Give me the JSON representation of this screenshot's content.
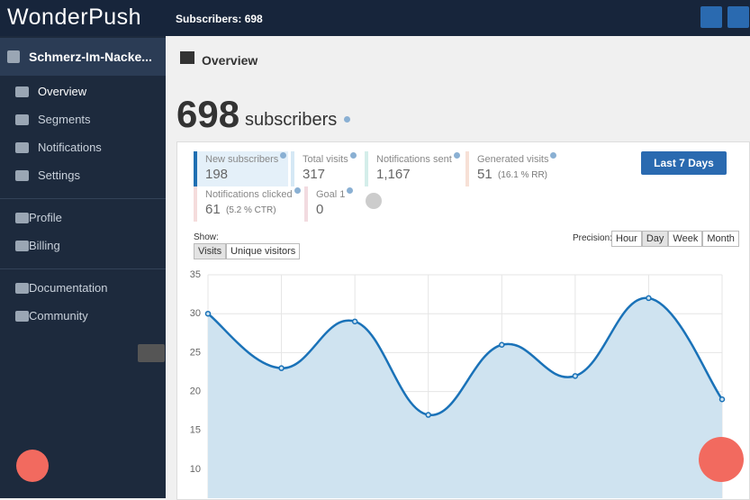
{
  "header": {
    "logo": "WonderPush",
    "subscribers": "Subscribers: 698"
  },
  "sidebar": {
    "project": "Schmerz-Im-Nacke...",
    "nav": [
      "Overview",
      "Segments",
      "Notifications",
      "Settings"
    ],
    "account": [
      "Profile",
      "Billing"
    ],
    "help": [
      "Documentation",
      "Community"
    ]
  },
  "main": {
    "breadcrumb": "Overview",
    "subscriber_count": "698",
    "subscriber_label": "subscribers",
    "stats": [
      {
        "label": "New subscribers",
        "value": "198"
      },
      {
        "label": "Total visits",
        "value": "317"
      },
      {
        "label": "Notifications sent",
        "value": "1,167"
      },
      {
        "label": "Generated visits",
        "value": "51",
        "detail": "(16.1 % RR)"
      },
      {
        "label": "Notifications clicked",
        "value": "61",
        "detail": "(5.2 % CTR)"
      },
      {
        "label": "Goal 1",
        "value": "0"
      }
    ],
    "date_range": "Last 7 Days",
    "show_label": "Show:",
    "show_options": [
      "Visits",
      "Unique visitors"
    ],
    "precision_label": "Precision:",
    "precision_options": [
      "Hour",
      "Day",
      "Week",
      "Month"
    ]
  },
  "chart_data": {
    "type": "line",
    "values": [
      30,
      23,
      29,
      17,
      26,
      22,
      32,
      19
    ],
    "color": "#1a72b8",
    "ylim": [
      5,
      35
    ],
    "yticks": [
      10,
      15,
      20,
      25,
      30,
      35
    ],
    "grid": true
  }
}
